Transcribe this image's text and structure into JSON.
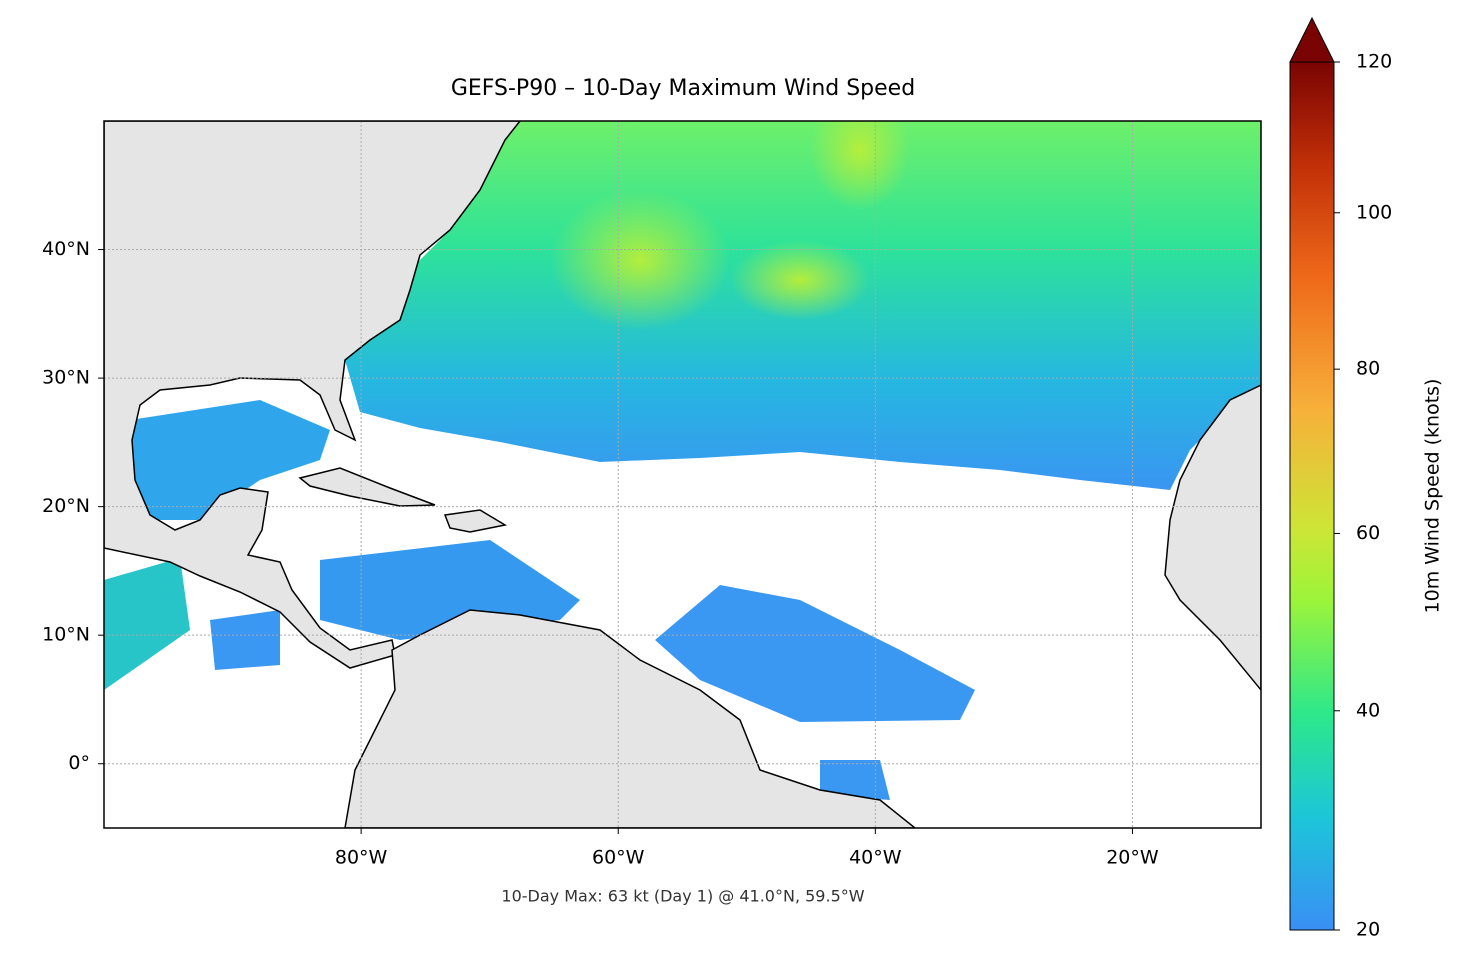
{
  "title": "GEFS-P90 – 10-Day Maximum Wind Speed",
  "map": {
    "lonlim": [
      -100,
      -10
    ],
    "latlim": [
      -5,
      50
    ],
    "xticks": [
      {
        "value": -80,
        "label": "80°W"
      },
      {
        "value": -60,
        "label": "60°W"
      },
      {
        "value": -40,
        "label": "40°W"
      },
      {
        "value": -20,
        "label": "20°W"
      }
    ],
    "yticks": [
      {
        "value": 0,
        "label": "0°"
      },
      {
        "value": 10,
        "label": "10°N"
      },
      {
        "value": 20,
        "label": "20°N"
      },
      {
        "value": 30,
        "label": "30°N"
      },
      {
        "value": 40,
        "label": "40°N"
      }
    ],
    "grid": true
  },
  "colorbar": {
    "label": "10m Wind Speed (knots)",
    "lim": [
      20,
      120
    ],
    "ticks": [
      20,
      40,
      60,
      80,
      100,
      120
    ],
    "extend": "max"
  },
  "annotation": "10-Day Max: 63 kt (Day 1) @ 41.0°N, 59.5°W"
}
